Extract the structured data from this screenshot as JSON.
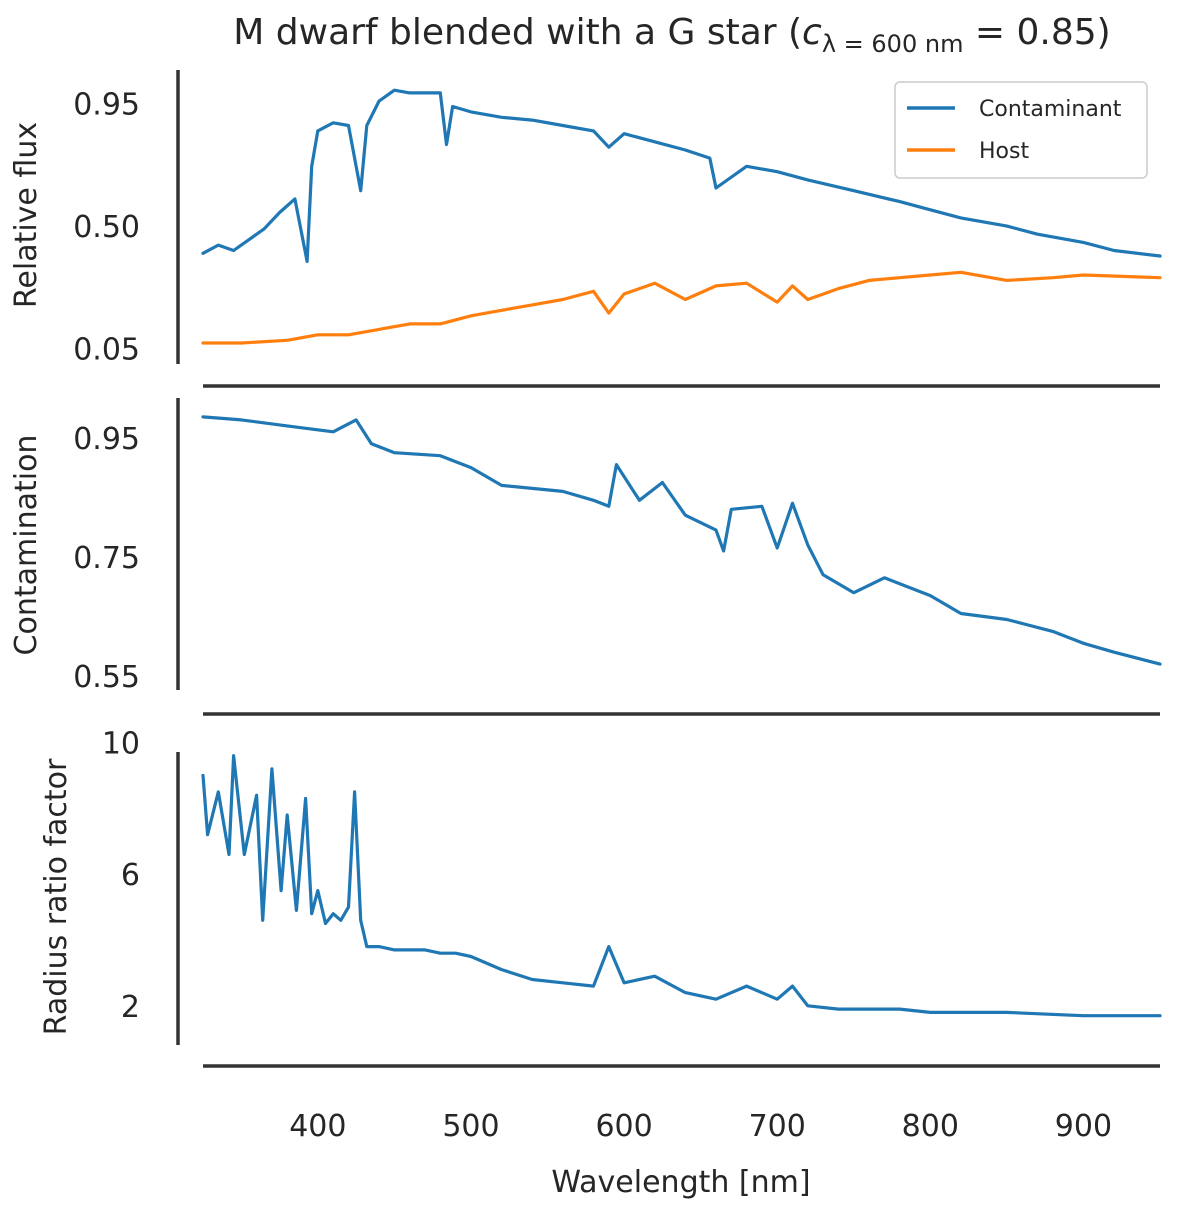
{
  "chart_data": {
    "title": {
      "prefix": "M dwarf blended with a G star (",
      "symbol": "c",
      "subscript": "λ = 600 nm",
      "suffix": " = 0.85)"
    },
    "xlabel": "Wavelength [nm]",
    "x_range": [
      325,
      950
    ],
    "x_ticks": [
      400,
      500,
      600,
      700,
      800,
      900
    ],
    "panels": [
      {
        "id": "flux",
        "type": "line",
        "ylabel": "Relative flux",
        "ylim": [
          0.0,
          1.03
        ],
        "y_ticks": [
          0.05,
          0.5,
          0.95
        ],
        "y_tick_labels": [
          "0.05",
          "0.50",
          "0.95"
        ],
        "legend": {
          "position": "top-right",
          "entries": [
            "Contaminant",
            "Host"
          ]
        },
        "series": [
          {
            "name": "Contaminant",
            "color": "#1f77b4",
            "x": [
              325,
              335,
              345,
              355,
              365,
              375,
              385,
              393,
              396,
              400,
              410,
              420,
              428,
              432,
              440,
              450,
              460,
              470,
              480,
              484,
              488,
              500,
              520,
              540,
              560,
              580,
              590,
              600,
              620,
              640,
              656,
              660,
              680,
              700,
              720,
              750,
              780,
              800,
              820,
              850,
              870,
              900,
              920,
              950
            ],
            "y": [
              0.4,
              0.43,
              0.41,
              0.45,
              0.49,
              0.55,
              0.6,
              0.37,
              0.72,
              0.85,
              0.88,
              0.87,
              0.63,
              0.87,
              0.96,
              1.0,
              0.99,
              0.99,
              0.99,
              0.8,
              0.94,
              0.92,
              0.9,
              0.89,
              0.87,
              0.85,
              0.79,
              0.84,
              0.81,
              0.78,
              0.75,
              0.64,
              0.72,
              0.7,
              0.67,
              0.63,
              0.59,
              0.56,
              0.53,
              0.5,
              0.47,
              0.44,
              0.41,
              0.39
            ]
          },
          {
            "name": "Host",
            "color": "#ff7f0e",
            "x": [
              325,
              350,
              380,
              400,
              420,
              440,
              460,
              480,
              500,
              520,
              540,
              560,
              580,
              590,
              600,
              620,
              640,
              660,
              680,
              700,
              710,
              720,
              740,
              760,
              780,
              800,
              820,
              850,
              880,
              900,
              950
            ],
            "y": [
              0.07,
              0.07,
              0.08,
              0.1,
              0.1,
              0.12,
              0.14,
              0.14,
              0.17,
              0.19,
              0.21,
              0.23,
              0.26,
              0.18,
              0.25,
              0.29,
              0.23,
              0.28,
              0.29,
              0.22,
              0.28,
              0.23,
              0.27,
              0.3,
              0.31,
              0.32,
              0.33,
              0.3,
              0.31,
              0.32,
              0.31
            ]
          }
        ]
      },
      {
        "id": "contamination",
        "type": "line",
        "ylabel": "Contamination",
        "ylim": [
          0.54,
          1.0
        ],
        "y_ticks": [
          0.55,
          0.75,
          0.95
        ],
        "y_tick_labels": [
          "0.55",
          "0.75",
          "0.95"
        ],
        "series": [
          {
            "name": "Contamination",
            "color": "#1f77b4",
            "x": [
              325,
              350,
              380,
              410,
              425,
              435,
              450,
              480,
              500,
              520,
              540,
              560,
              580,
              590,
              595,
              610,
              625,
              640,
              660,
              665,
              670,
              690,
              700,
              710,
              720,
              730,
              750,
              770,
              780,
              800,
              820,
              850,
              880,
              900,
              920,
              950
            ],
            "y": [
              0.985,
              0.98,
              0.97,
              0.96,
              0.98,
              0.94,
              0.925,
              0.92,
              0.9,
              0.87,
              0.865,
              0.86,
              0.845,
              0.835,
              0.905,
              0.845,
              0.875,
              0.82,
              0.795,
              0.76,
              0.83,
              0.835,
              0.765,
              0.84,
              0.77,
              0.72,
              0.69,
              0.715,
              0.705,
              0.685,
              0.655,
              0.645,
              0.625,
              0.605,
              0.59,
              0.57
            ]
          }
        ]
      },
      {
        "id": "radius",
        "type": "line",
        "ylabel": "Radius ratio factor",
        "ylim": [
          0.9,
          10.2
        ],
        "y_ticks": [
          2,
          6,
          10
        ],
        "y_tick_labels": [
          "2",
          "6",
          "10"
        ],
        "series": [
          {
            "name": "Radius ratio factor",
            "color": "#1f77b4",
            "x": [
              325,
              328,
              335,
              342,
              345,
              352,
              360,
              364,
              370,
              376,
              380,
              386,
              392,
              396,
              400,
              405,
              410,
              415,
              420,
              424,
              428,
              432,
              440,
              450,
              470,
              480,
              490,
              500,
              520,
              540,
              560,
              580,
              590,
              600,
              620,
              640,
              660,
              680,
              700,
              710,
              720,
              740,
              780,
              800,
              850,
              900,
              950
            ],
            "y": [
              9.0,
              7.2,
              8.5,
              6.6,
              9.6,
              6.6,
              8.4,
              4.6,
              9.2,
              5.5,
              7.8,
              4.9,
              8.3,
              4.8,
              5.5,
              4.5,
              4.8,
              4.6,
              5.0,
              8.5,
              4.6,
              3.8,
              3.8,
              3.7,
              3.7,
              3.6,
              3.6,
              3.5,
              3.1,
              2.8,
              2.7,
              2.6,
              3.8,
              2.7,
              2.9,
              2.4,
              2.2,
              2.6,
              2.2,
              2.6,
              2.0,
              1.9,
              1.9,
              1.8,
              1.8,
              1.7,
              1.7
            ]
          }
        ]
      }
    ]
  }
}
